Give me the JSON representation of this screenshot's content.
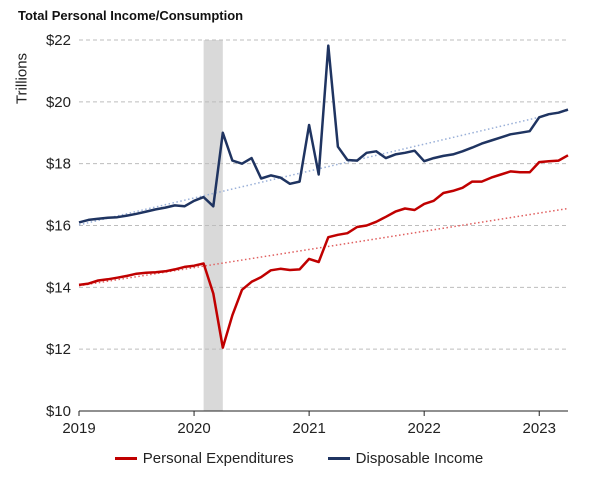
{
  "chart_data": {
    "type": "line",
    "title": "Total Personal Income/Consumption",
    "ylabel": "Trillions",
    "xlabel": "",
    "ylim": [
      10,
      22
    ],
    "xlim": [
      2019.0,
      2023.25
    ],
    "y_ticks": [
      10,
      12,
      14,
      16,
      18,
      20,
      22
    ],
    "y_tick_labels": [
      "$10",
      "$12",
      "$14",
      "$16",
      "$18",
      "$20",
      "$22"
    ],
    "x_ticks": [
      2019,
      2020,
      2021,
      2022,
      2023
    ],
    "x_tick_labels": [
      "2019",
      "2020",
      "2021",
      "2022",
      "2023"
    ],
    "grid": "horizontal dashed",
    "legend_position": "bottom",
    "shaded_period": [
      2020.083,
      2020.25
    ],
    "series": [
      {
        "name": "Personal Expenditures",
        "color": "#c00000",
        "x": [
          2019.0,
          2019.083,
          2019.167,
          2019.25,
          2019.333,
          2019.417,
          2019.5,
          2019.583,
          2019.667,
          2019.75,
          2019.833,
          2019.917,
          2020.0,
          2020.083,
          2020.167,
          2020.25,
          2020.333,
          2020.417,
          2020.5,
          2020.583,
          2020.667,
          2020.75,
          2020.833,
          2020.917,
          2021.0,
          2021.083,
          2021.167,
          2021.25,
          2021.333,
          2021.417,
          2021.5,
          2021.583,
          2021.667,
          2021.75,
          2021.833,
          2021.917,
          2022.0,
          2022.083,
          2022.167,
          2022.25,
          2022.333,
          2022.417,
          2022.5,
          2022.583,
          2022.667,
          2022.75,
          2022.833,
          2022.917,
          2023.0,
          2023.083,
          2023.167,
          2023.25
        ],
        "values": [
          14.08,
          14.12,
          14.22,
          14.26,
          14.31,
          14.37,
          14.44,
          14.47,
          14.49,
          14.52,
          14.58,
          14.66,
          14.7,
          14.77,
          13.8,
          12.05,
          13.1,
          13.92,
          14.18,
          14.33,
          14.55,
          14.6,
          14.56,
          14.58,
          14.92,
          14.82,
          15.62,
          15.7,
          15.75,
          15.95,
          16.0,
          16.12,
          16.28,
          16.45,
          16.55,
          16.5,
          16.7,
          16.8,
          17.05,
          17.12,
          17.22,
          17.42,
          17.42,
          17.55,
          17.65,
          17.75,
          17.72,
          17.72,
          18.05,
          18.08,
          18.1,
          18.27
        ]
      },
      {
        "name": "Disposable Income",
        "color": "#1f3461",
        "x": [
          2019.0,
          2019.083,
          2019.167,
          2019.25,
          2019.333,
          2019.417,
          2019.5,
          2019.583,
          2019.667,
          2019.75,
          2019.833,
          2019.917,
          2020.0,
          2020.083,
          2020.167,
          2020.25,
          2020.333,
          2020.417,
          2020.5,
          2020.583,
          2020.667,
          2020.75,
          2020.833,
          2020.917,
          2021.0,
          2021.083,
          2021.167,
          2021.25,
          2021.333,
          2021.417,
          2021.5,
          2021.583,
          2021.667,
          2021.75,
          2021.833,
          2021.917,
          2022.0,
          2022.083,
          2022.167,
          2022.25,
          2022.333,
          2022.417,
          2022.5,
          2022.583,
          2022.667,
          2022.75,
          2022.833,
          2022.917,
          2023.0,
          2023.083,
          2023.167,
          2023.25
        ],
        "values": [
          16.1,
          16.18,
          16.22,
          16.25,
          16.27,
          16.32,
          16.38,
          16.45,
          16.52,
          16.58,
          16.65,
          16.62,
          16.8,
          16.92,
          16.62,
          19.0,
          18.1,
          18.0,
          18.18,
          17.52,
          17.62,
          17.55,
          17.35,
          17.42,
          19.25,
          17.65,
          21.82,
          18.55,
          18.12,
          18.1,
          18.35,
          18.4,
          18.18,
          18.3,
          18.35,
          18.42,
          18.08,
          18.18,
          18.25,
          18.3,
          18.4,
          18.52,
          18.65,
          18.75,
          18.85,
          18.95,
          19.0,
          19.05,
          19.5,
          19.6,
          19.65,
          19.75
        ]
      }
    ],
    "trend_lines": [
      {
        "color": "#e06060",
        "x": [
          2019.0,
          2023.25
        ],
        "values": [
          14.05,
          16.55
        ]
      },
      {
        "color": "#9ab0d8",
        "x": [
          2019.0,
          2023.25
        ],
        "values": [
          16.02,
          19.72
        ]
      }
    ]
  }
}
